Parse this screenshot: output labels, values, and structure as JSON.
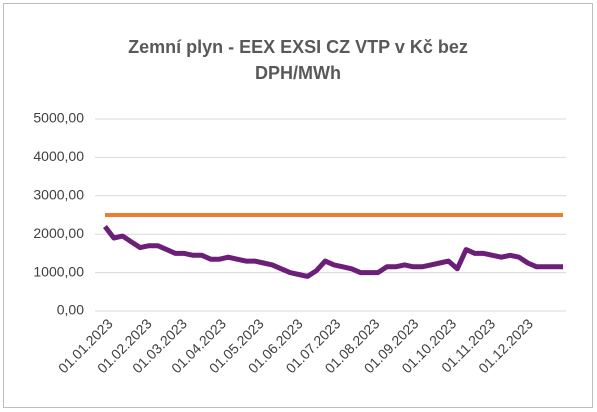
{
  "chart_data": {
    "type": "line",
    "title": "Zemní plyn - EEX EXSI CZ VTP v Kč bez DPH/MWh",
    "x": [
      "01.01.2023",
      "08.01.2023",
      "15.01.2023",
      "22.01.2023",
      "29.01.2023",
      "05.02.2023",
      "12.02.2023",
      "19.02.2023",
      "26.02.2023",
      "05.03.2023",
      "12.03.2023",
      "19.03.2023",
      "26.03.2023",
      "02.04.2023",
      "09.04.2023",
      "16.04.2023",
      "23.04.2023",
      "30.04.2023",
      "07.05.2023",
      "14.05.2023",
      "21.05.2023",
      "28.05.2023",
      "04.06.2023",
      "11.06.2023",
      "18.06.2023",
      "25.06.2023",
      "02.07.2023",
      "09.07.2023",
      "16.07.2023",
      "23.07.2023",
      "30.07.2023",
      "06.08.2023",
      "13.08.2023",
      "20.08.2023",
      "27.08.2023",
      "03.09.2023",
      "10.09.2023",
      "17.09.2023",
      "24.09.2023",
      "01.10.2023",
      "08.10.2023",
      "15.10.2023",
      "22.10.2023",
      "29.10.2023",
      "05.11.2023",
      "12.11.2023",
      "19.11.2023",
      "26.11.2023",
      "03.12.2023",
      "10.12.2023",
      "17.12.2023",
      "24.12.2023",
      "31.12.2023"
    ],
    "series": [
      {
        "color": "#6b1f78",
        "values": [
          2200,
          1900,
          1950,
          1800,
          1650,
          1700,
          1700,
          1600,
          1500,
          1500,
          1450,
          1450,
          1350,
          1350,
          1400,
          1350,
          1300,
          1300,
          1250,
          1200,
          1100,
          1000,
          950,
          900,
          1050,
          1300,
          1200,
          1150,
          1100,
          1000,
          1000,
          1000,
          1150,
          1150,
          1200,
          1150,
          1150,
          1200,
          1250,
          1300,
          1100,
          1600,
          1500,
          1500,
          1450,
          1400,
          1450,
          1400,
          1250,
          1150,
          1150,
          1150,
          1150
        ]
      },
      {
        "color": "#ed7d31",
        "values": [
          2500,
          2500,
          2500,
          2500,
          2500,
          2500,
          2500,
          2500,
          2500,
          2500,
          2500,
          2500,
          2500,
          2500,
          2500,
          2500,
          2500,
          2500,
          2500,
          2500,
          2500,
          2500,
          2500,
          2500,
          2500,
          2500,
          2500,
          2500,
          2500,
          2500,
          2500,
          2500,
          2500,
          2500,
          2500,
          2500,
          2500,
          2500,
          2500,
          2500,
          2500,
          2500,
          2500,
          2500,
          2500,
          2500,
          2500,
          2500,
          2500,
          2500,
          2500,
          2500,
          2500
        ]
      }
    ],
    "xlim": [
      "01.01.2023",
      "31.12.2023"
    ],
    "xticks": [
      "01.01.2023",
      "01.02.2023",
      "01.03.2023",
      "01.04.2023",
      "01.05.2023",
      "01.06.2023",
      "01.07.2023",
      "01.08.2023",
      "01.09.2023",
      "01.10.2023",
      "01.11.2023",
      "01.12.2023"
    ],
    "ylim": [
      0,
      5000
    ],
    "yticks": [
      {
        "value": 0,
        "label": "0,00"
      },
      {
        "value": 1000,
        "label": "1000,00"
      },
      {
        "value": 2000,
        "label": "2000,00"
      },
      {
        "value": 3000,
        "label": "3000,00"
      },
      {
        "value": 4000,
        "label": "4000,00"
      },
      {
        "value": 5000,
        "label": "5000,00"
      }
    ],
    "grid": true
  }
}
